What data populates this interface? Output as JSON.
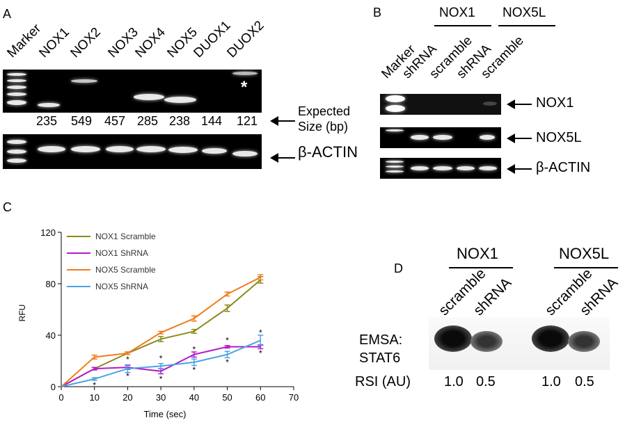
{
  "panelA": {
    "letter": "A",
    "lanes": [
      "Marker",
      "NOX1",
      "NOX2",
      "NOX3",
      "NOX4",
      "NOX5",
      "DUOX1",
      "DUOX2"
    ],
    "sizes": [
      "235",
      "549",
      "457",
      "285",
      "238",
      "144",
      "121"
    ],
    "expected_label_1": "Expected",
    "expected_label_2": "Size (bp)",
    "actin_label": "β-ACTIN",
    "asterisk": "*"
  },
  "panelB": {
    "letter": "B",
    "group1": "NOX1",
    "group2": "NOX5L",
    "lanes": [
      "Marker",
      "shRNA",
      "scramble",
      "shRNA",
      "scramble"
    ],
    "row_labels": [
      "NOX1",
      "NOX5L",
      "β-ACTIN"
    ]
  },
  "panelC": {
    "letter": "C",
    "chart_data": {
      "type": "line",
      "xlabel": "Time (sec)",
      "ylabel": "RFU",
      "xlim": [
        0,
        70
      ],
      "ylim": [
        0,
        120
      ],
      "xticks": [
        0,
        10,
        20,
        30,
        40,
        50,
        60,
        70
      ],
      "yticks": [
        0,
        40,
        80,
        120
      ],
      "legend_position": "top-left",
      "x": [
        0,
        10,
        20,
        30,
        40,
        50,
        60
      ],
      "series": [
        {
          "name": "NOX1 Scramble",
          "color": "#8a8a1e",
          "values": [
            0,
            14,
            26,
            37,
            43,
            61,
            83
          ],
          "errors": [
            0,
            1,
            1,
            2,
            1.5,
            2.5,
            2.5
          ]
        },
        {
          "name": "NOX1 ShRNA",
          "color": "#b21cc9",
          "values": [
            0,
            14,
            15,
            12,
            25,
            31,
            31
          ],
          "errors": [
            0,
            1,
            1.5,
            2,
            2,
            1,
            1.5
          ]
        },
        {
          "name": "NOX5 Scramble",
          "color": "#f07d1a",
          "values": [
            0,
            23,
            26,
            42,
            53,
            72,
            85
          ],
          "errors": [
            0,
            1.5,
            1,
            1,
            2,
            1.5,
            2
          ]
        },
        {
          "name": "NOX5 ShRNA",
          "color": "#4aa3e6",
          "values": [
            0,
            6,
            14,
            16,
            19,
            25,
            36
          ],
          "errors": [
            0,
            1,
            3,
            2,
            2.5,
            2.5,
            4
          ]
        }
      ],
      "significance_marks": [
        {
          "x": 10,
          "y": 1,
          "text": "*"
        },
        {
          "x": 20,
          "y": 8,
          "text": "*"
        },
        {
          "x": 20,
          "y": 21,
          "text": "*"
        },
        {
          "x": 30,
          "y": 6,
          "text": "*"
        },
        {
          "x": 30,
          "y": 22,
          "text": "*"
        },
        {
          "x": 40,
          "y": 13,
          "text": "*"
        },
        {
          "x": 40,
          "y": 29,
          "text": "*"
        },
        {
          "x": 50,
          "y": 19,
          "text": "*"
        },
        {
          "x": 50,
          "y": 36,
          "text": "*"
        },
        {
          "x": 60,
          "y": 26,
          "text": "*"
        },
        {
          "x": 60,
          "y": 42,
          "text": "*"
        }
      ]
    }
  },
  "panelD": {
    "letter": "D",
    "group1": "NOX1",
    "group2": "NOX5L",
    "lanes": [
      "scramble",
      "shRNA",
      "scramble",
      "shRNA"
    ],
    "emsa_label_1": "EMSA:",
    "emsa_label_2": "STAT6",
    "rsi_label": "RSI (AU)",
    "rsi_values": [
      "1.0",
      "0.5",
      "1.0",
      "0.5"
    ]
  }
}
